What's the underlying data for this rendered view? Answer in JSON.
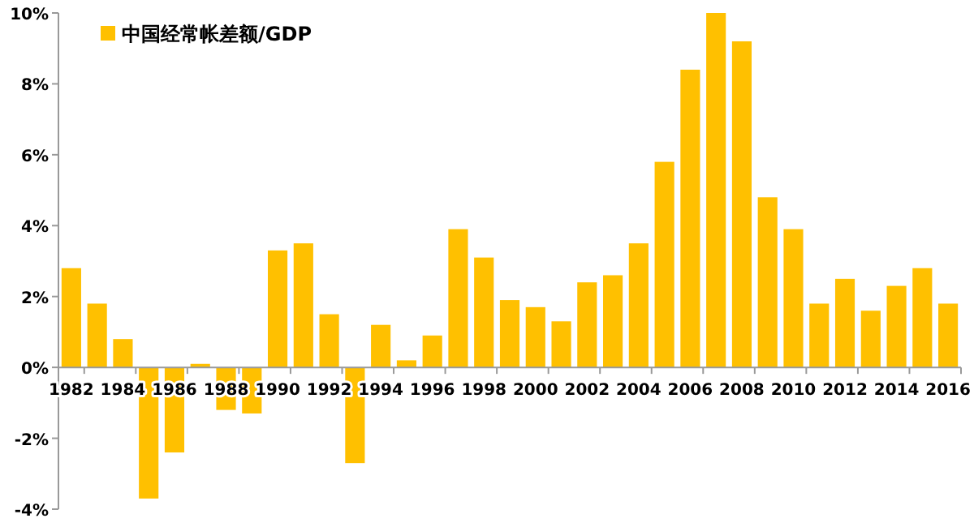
{
  "chart_data": {
    "type": "bar",
    "categories": [
      "1982",
      null,
      "1984",
      null,
      "1986",
      null,
      "1988",
      null,
      "1990",
      null,
      "1992",
      null,
      "1994",
      null,
      "1996",
      null,
      "1998",
      null,
      "2000",
      null,
      "2002",
      null,
      "2004",
      null,
      "2006",
      null,
      "2008",
      null,
      "2010",
      null,
      "2012",
      null,
      "2014",
      null,
      "2016"
    ],
    "series": [
      {
        "name": "中国经常帐差额/GDP",
        "color": "#ffc000",
        "values": [
          2.8,
          1.8,
          0.8,
          -3.7,
          -2.4,
          0.1,
          -1.2,
          -1.3,
          3.3,
          3.5,
          1.5,
          -2.7,
          1.2,
          0.2,
          0.9,
          3.9,
          3.1,
          1.9,
          1.7,
          1.3,
          2.4,
          2.6,
          3.5,
          5.8,
          8.4,
          10.0,
          9.2,
          4.8,
          3.9,
          1.8,
          2.5,
          1.6,
          2.3,
          2.8,
          1.8
        ]
      }
    ],
    "ylim": [
      -4,
      10
    ],
    "yticks": [
      {
        "value": -4,
        "label": "-4%"
      },
      {
        "value": -2,
        "label": "-2%"
      },
      {
        "value": 0,
        "label": "0%"
      },
      {
        "value": 2,
        "label": "2%"
      },
      {
        "value": 4,
        "label": "4%"
      },
      {
        "value": 6,
        "label": "6%"
      },
      {
        "value": 8,
        "label": "8%"
      },
      {
        "value": 10,
        "label": "10%"
      }
    ],
    "grid": false,
    "legend": "top left"
  }
}
